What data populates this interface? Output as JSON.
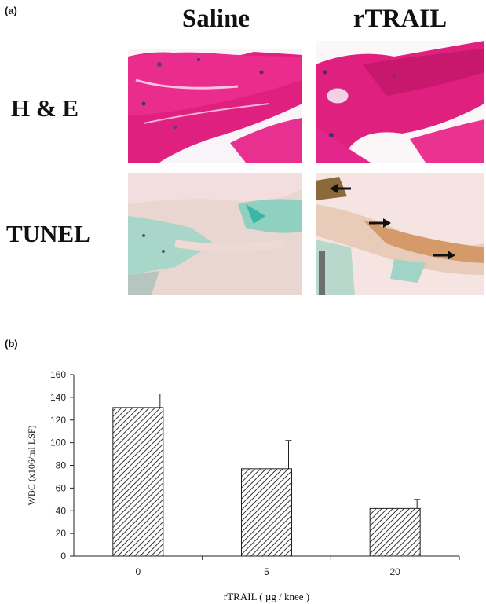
{
  "panel_a": {
    "label": "(a)",
    "columns": [
      "Saline",
      "rTRAIL"
    ],
    "rows": [
      "H & E",
      "TUNEL"
    ]
  },
  "panel_b": {
    "label": "(b)"
  },
  "chart_data": {
    "type": "bar",
    "categories": [
      "0",
      "5",
      "20"
    ],
    "values": [
      131,
      77,
      42
    ],
    "error_upper": [
      143,
      102,
      50
    ],
    "xlabel": "rTRAIL ( µg / knee )",
    "ylabel": "WBC (x106/ml LSF)",
    "ylim": [
      0,
      160
    ],
    "yticks": [
      0,
      20,
      40,
      60,
      80,
      100,
      120,
      140,
      160
    ],
    "grid": false,
    "legend": "none",
    "bar_fill": "diagonal-hatch",
    "colors": {
      "bar_stroke": "#222222",
      "hatch": "#333333"
    }
  }
}
